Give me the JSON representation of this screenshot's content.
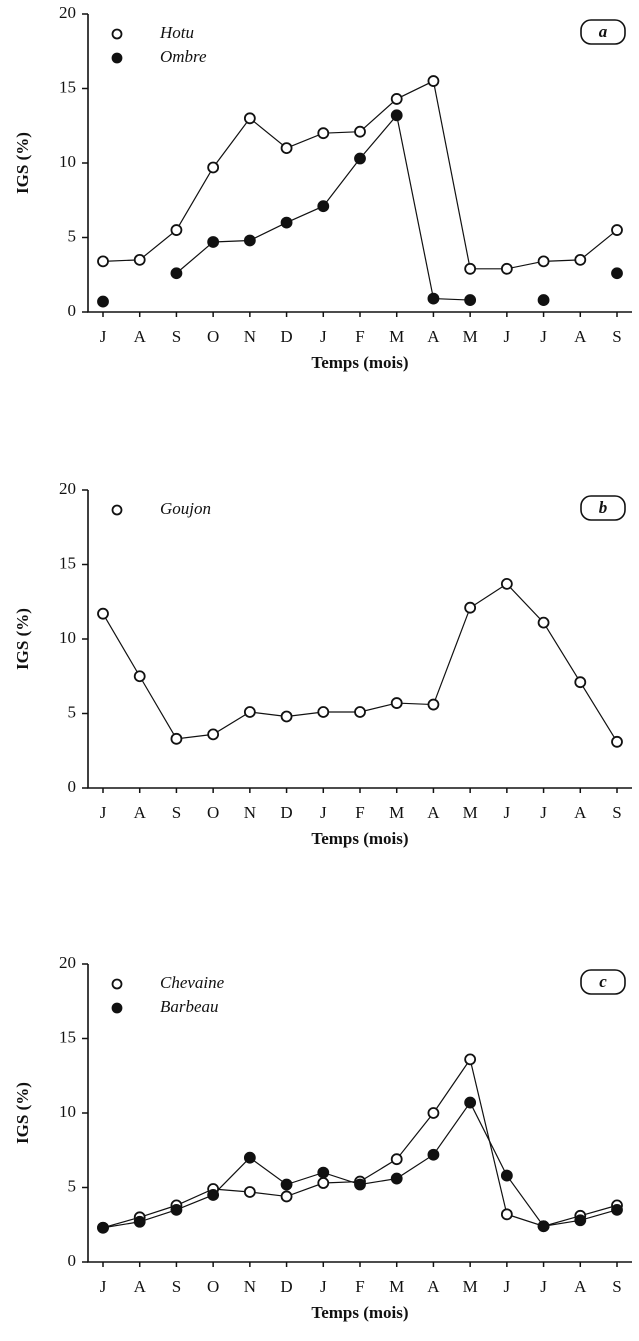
{
  "chart_data": [
    {
      "type": "line",
      "panel": "a",
      "xlabel": "Temps (mois)",
      "ylabel": "IGS (%)",
      "categories": [
        "J",
        "A",
        "S",
        "O",
        "N",
        "D",
        "J",
        "F",
        "M",
        "A",
        "M",
        "J",
        "J",
        "A",
        "S"
      ],
      "ylim": [
        0,
        20
      ],
      "yticks": [
        0,
        5,
        10,
        15,
        20
      ],
      "series": [
        {
          "name": "Hotu",
          "color": "#111",
          "marker": "open",
          "values": [
            3.4,
            3.5,
            5.5,
            9.7,
            13.0,
            11.0,
            12.0,
            12.1,
            14.3,
            15.5,
            2.9,
            2.9,
            3.4,
            3.5,
            5.5
          ]
        },
        {
          "name": "Ombre",
          "color": "#111",
          "marker": "filled",
          "values": [
            0.7,
            null,
            2.6,
            4.7,
            4.8,
            6.0,
            7.1,
            10.3,
            13.2,
            0.9,
            0.8,
            null,
            0.8,
            null,
            2.6
          ]
        }
      ]
    },
    {
      "type": "line",
      "panel": "b",
      "xlabel": "Temps (mois)",
      "ylabel": "IGS (%)",
      "categories": [
        "J",
        "A",
        "S",
        "O",
        "N",
        "D",
        "J",
        "F",
        "M",
        "A",
        "M",
        "J",
        "J",
        "A",
        "S"
      ],
      "ylim": [
        0,
        20
      ],
      "yticks": [
        0,
        5,
        10,
        15,
        20
      ],
      "series": [
        {
          "name": "Goujon",
          "color": "#111",
          "marker": "open",
          "values": [
            11.7,
            7.5,
            3.3,
            3.6,
            5.1,
            4.8,
            5.1,
            5.1,
            5.7,
            5.6,
            12.1,
            13.7,
            11.1,
            7.1,
            3.1
          ]
        }
      ]
    },
    {
      "type": "line",
      "panel": "c",
      "xlabel": "Temps (mois)",
      "ylabel": "IGS (%)",
      "categories": [
        "J",
        "A",
        "S",
        "O",
        "N",
        "D",
        "J",
        "F",
        "M",
        "A",
        "M",
        "J",
        "J",
        "A",
        "S"
      ],
      "ylim": [
        0,
        20
      ],
      "yticks": [
        0,
        5,
        10,
        15,
        20
      ],
      "series": [
        {
          "name": "Chevaine",
          "color": "#111",
          "marker": "open",
          "values": [
            2.3,
            3.0,
            3.8,
            4.9,
            4.7,
            4.4,
            5.3,
            5.4,
            6.9,
            10.0,
            13.6,
            3.2,
            2.4,
            3.1,
            3.8
          ]
        },
        {
          "name": "Barbeau",
          "color": "#111",
          "marker": "filled",
          "values": [
            2.3,
            2.7,
            3.5,
            4.5,
            7.0,
            5.2,
            6.0,
            5.2,
            5.6,
            7.2,
            10.7,
            5.8,
            2.4,
            2.8,
            3.5
          ]
        }
      ]
    }
  ]
}
